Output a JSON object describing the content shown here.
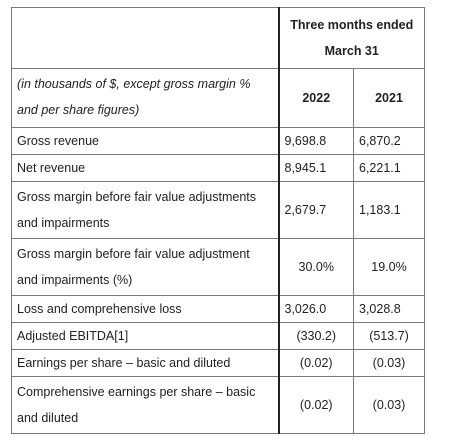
{
  "table": {
    "period_line1": "Three months ended",
    "period_line2": "March 31",
    "note_line1": "(in thousands of $, except gross margin %",
    "note_line2": "and per share figures)",
    "year1": "2022",
    "year2": "2021",
    "rows": [
      {
        "label_line1": "Gross revenue",
        "label_line2": "",
        "v2022": "9,698.8",
        "v2021": "6,870.2"
      },
      {
        "label_line1": "Net revenue",
        "label_line2": "",
        "v2022": "8,945.1",
        "v2021": "6,221.1"
      },
      {
        "label_line1": "Gross margin before fair value adjustments",
        "label_line2": "and impairments",
        "v2022": "2,679.7",
        "v2021": "1,183.1"
      },
      {
        "label_line1": "Gross margin before fair value adjustment",
        "label_line2": "and impairments (%)",
        "v2022": "30.0%",
        "v2021": "19.0%"
      },
      {
        "label_line1": "Loss and comprehensive loss",
        "label_line2": "",
        "v2022": "3,026.0",
        "v2021": "3,028.8"
      },
      {
        "label_line1": "Adjusted EBITDA[1]",
        "label_line2": "",
        "v2022": "(330.2)",
        "v2021": "(513.7)"
      },
      {
        "label_line1": "Earnings per share – basic and diluted",
        "label_line2": "",
        "v2022": "(0.02)",
        "v2021": "(0.03)"
      },
      {
        "label_line1": "Comprehensive earnings per share – basic",
        "label_line2": "and diluted",
        "v2022": "(0.02)",
        "v2021": "(0.03)"
      }
    ]
  }
}
